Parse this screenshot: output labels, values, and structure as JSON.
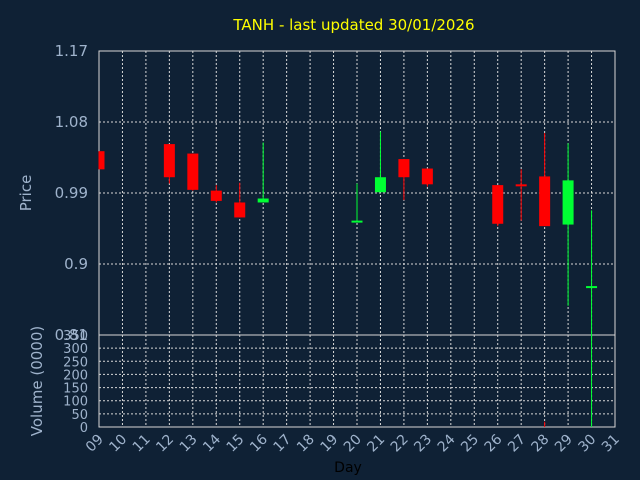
{
  "chart_data": {
    "type": "candlestick",
    "title": "TANH - last updated 30/01/2026",
    "xlabel": "Day",
    "price_ylabel": "Price",
    "volume_ylabel": "Volume (0000)",
    "x_ticks": [
      "09",
      "10",
      "11",
      "12",
      "13",
      "14",
      "15",
      "16",
      "17",
      "18",
      "19",
      "20",
      "21",
      "22",
      "23",
      "24",
      "25",
      "26",
      "27",
      "28",
      "29",
      "30",
      "31"
    ],
    "price_ticks": [
      "0.81",
      "0.9",
      "0.99",
      "1.08",
      "1.17"
    ],
    "price_ylim": [
      0.81,
      1.17
    ],
    "volume_ticks": [
      "0",
      "50",
      "100",
      "150",
      "200",
      "250",
      "300",
      "350"
    ],
    "volume_ylim": [
      0,
      350
    ],
    "grid": true,
    "colors": {
      "background": "#0f2135",
      "up": "#00ff33",
      "down": "#ff0000",
      "grid": "#d8d8d8",
      "title": "#ffff00",
      "text": "#9fb3cc"
    },
    "candles": [
      {
        "day": "09",
        "open": 1.043,
        "high": 1.043,
        "low": 1.02,
        "close": 1.02
      },
      {
        "day": "12",
        "open": 1.052,
        "high": 1.052,
        "low": 1.002,
        "close": 1.01
      },
      {
        "day": "13",
        "open": 1.04,
        "high": 1.04,
        "low": 0.993,
        "close": 0.994
      },
      {
        "day": "14",
        "open": 0.993,
        "high": 1.0,
        "low": 0.978,
        "close": 0.98
      },
      {
        "day": "15",
        "open": 0.978,
        "high": 1.003,
        "low": 0.959,
        "close": 0.959
      },
      {
        "day": "16",
        "open": 0.978,
        "high": 1.054,
        "low": 0.978,
        "close": 0.983
      },
      {
        "day": "20",
        "open": 0.955,
        "high": 1.002,
        "low": 0.954,
        "close": 0.955
      },
      {
        "day": "21",
        "open": 0.991,
        "high": 1.068,
        "low": 0.991,
        "close": 1.01
      },
      {
        "day": "22",
        "open": 1.033,
        "high": 1.033,
        "low": 0.981,
        "close": 1.01
      },
      {
        "day": "23",
        "open": 1.021,
        "high": 1.021,
        "low": 0.998,
        "close": 1.001
      },
      {
        "day": "26",
        "open": 1.0,
        "high": 1.0,
        "low": 0.948,
        "close": 0.951
      },
      {
        "day": "27",
        "open": 1.001,
        "high": 1.02,
        "low": 0.955,
        "close": 0.999
      },
      {
        "day": "28",
        "open": 1.011,
        "high": 1.066,
        "low": 0.948,
        "close": 0.948
      },
      {
        "day": "29",
        "open": 0.95,
        "high": 1.053,
        "low": 0.847,
        "close": 1.006
      },
      {
        "day": "30",
        "open": 0.87,
        "high": 0.968,
        "low": 0.805,
        "close": 0.872
      }
    ],
    "volume": [
      {
        "day": "28",
        "value": 20,
        "direction": "down"
      },
      {
        "day": "29",
        "value": 0,
        "direction": "up"
      },
      {
        "day": "30",
        "value": 350,
        "direction": "up"
      }
    ]
  }
}
